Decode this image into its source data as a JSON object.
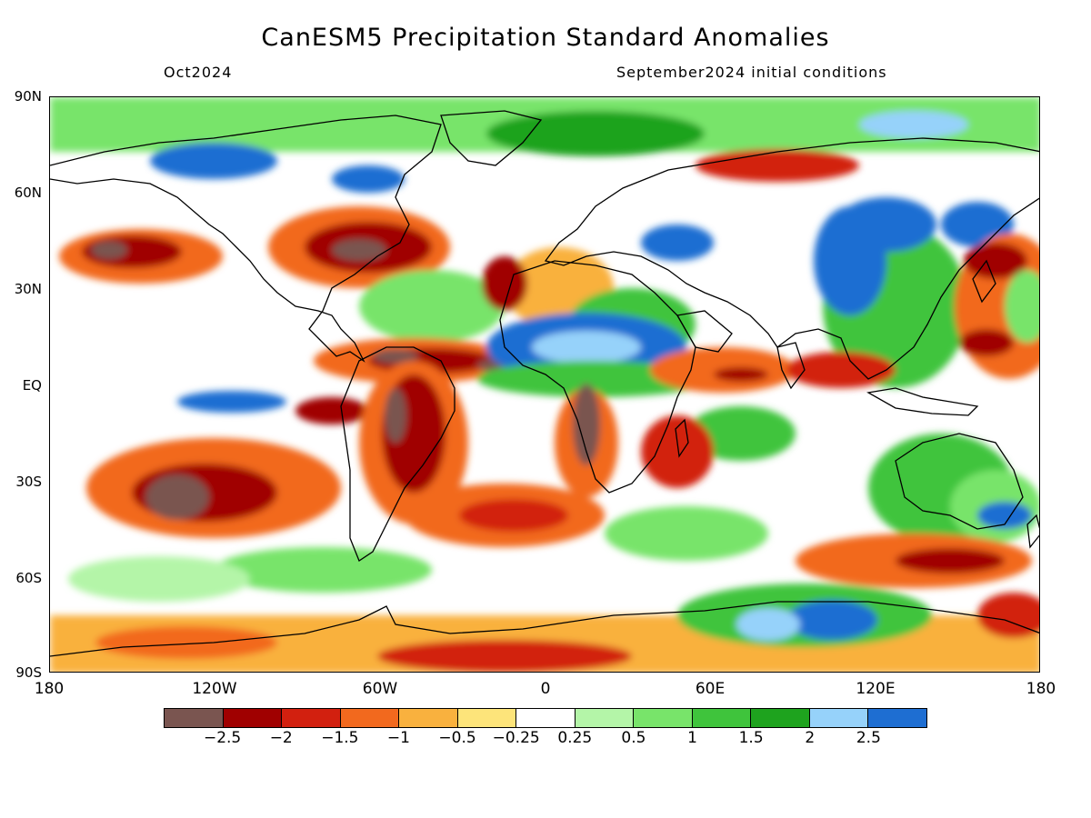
{
  "title": "CanESM5 Precipitation Standard Anomalies",
  "subtitle_left": "Oct2024",
  "subtitle_right": "September2024 initial conditions",
  "lat_labels": [
    "90N",
    "60N",
    "30N",
    "EQ",
    "30S",
    "60S",
    "90S"
  ],
  "lon_labels": [
    "180",
    "120W",
    "60W",
    "0",
    "60E",
    "120E",
    "180"
  ],
  "colorbar": {
    "colors": [
      "#7a5550",
      "#a00000",
      "#d2200f",
      "#f2691e",
      "#f9b13e",
      "#fde47a",
      "#ffffff",
      "#b4f5a8",
      "#78e46a",
      "#3fc43c",
      "#1ea31e",
      "#96d2fa",
      "#1e6ed2"
    ],
    "labels": [
      "−2.5",
      "−2",
      "−1.5",
      "−1",
      "−0.5",
      "−0.25",
      "0.25",
      "0.5",
      "1",
      "1.5",
      "2",
      "2.5"
    ]
  },
  "map_data": {
    "projection": "cylindrical equidistant",
    "lon_range": [
      -180,
      180
    ],
    "lat_range": [
      -90,
      90
    ],
    "variable": "precipitation standardized anomaly",
    "regions": [
      {
        "name": "north-pacific-dry-band",
        "lon": [
          -180,
          -120
        ],
        "lat": [
          28,
          45
        ],
        "level": -2.5
      },
      {
        "name": "eastern-us-dry",
        "lon": [
          -100,
          -60
        ],
        "lat": [
          35,
          55
        ],
        "level": -2.5
      },
      {
        "name": "north-atlantic-tropical-dry",
        "lon": [
          -70,
          -20
        ],
        "lat": [
          5,
          15
        ],
        "level": -2.5
      },
      {
        "name": "amazon-dry",
        "lon": [
          -75,
          -45
        ],
        "lat": [
          -25,
          5
        ],
        "level": -2.0
      },
      {
        "name": "congo-dry",
        "lon": [
          8,
          20
        ],
        "lat": [
          -20,
          0
        ],
        "level": -2.5
      },
      {
        "name": "south-pacific-dry",
        "lon": [
          -160,
          -110
        ],
        "lat": [
          -45,
          -20
        ],
        "level": -2.5
      },
      {
        "name": "south-atlantic-dry",
        "lon": [
          -30,
          10
        ],
        "lat": [
          -45,
          -25
        ],
        "level": -2.0
      },
      {
        "name": "southern-ocean-dry",
        "lon": [
          120,
          180
        ],
        "lat": [
          -65,
          -45
        ],
        "level": -2.0
      },
      {
        "name": "antarctic-coast-dry",
        "lon": [
          -50,
          20
        ],
        "lat": [
          -90,
          -75
        ],
        "level": -2.0
      },
      {
        "name": "sahel-wet",
        "lon": [
          -20,
          40
        ],
        "lat": [
          0,
          20
        ],
        "level": 2.5
      },
      {
        "name": "central-asia-wet",
        "lon": [
          90,
          140
        ],
        "lat": [
          30,
          60
        ],
        "level": 2.5
      },
      {
        "name": "east-antarctica-wet",
        "lon": [
          60,
          130
        ],
        "lat": [
          -85,
          -65
        ],
        "level": 2.5
      },
      {
        "name": "eastern-pacific-wet",
        "lon": [
          -150,
          -120
        ],
        "lat": [
          -5,
          5
        ],
        "level": 2.5
      },
      {
        "name": "western-pacific-dry",
        "lon": [
          140,
          180
        ],
        "lat": [
          10,
          40
        ],
        "level": -2.0
      },
      {
        "name": "arctic-wet",
        "lon": [
          -180,
          180
        ],
        "lat": [
          70,
          90
        ],
        "level": 1.5
      },
      {
        "name": "australia-wet",
        "lon": [
          115,
          155
        ],
        "lat": [
          -40,
          -15
        ],
        "level": 1.5
      }
    ]
  }
}
